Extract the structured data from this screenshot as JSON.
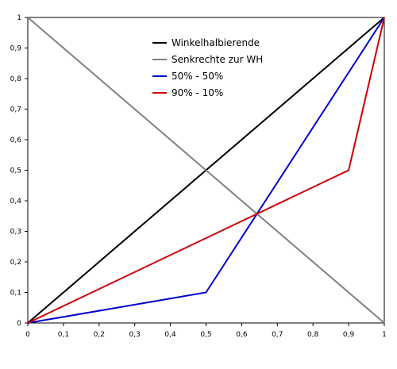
{
  "chart_data": {
    "type": "line",
    "title": "",
    "xlabel": "",
    "ylabel": "",
    "xlim": [
      0,
      1
    ],
    "ylim": [
      0,
      1
    ],
    "grid": false,
    "legend_position": "top-center",
    "x_ticks": [
      "0",
      "0,1",
      "0,2",
      "0,3",
      "0,4",
      "0,5",
      "0,6",
      "0,7",
      "0,8",
      "0,9",
      "1"
    ],
    "y_ticks": [
      "0",
      "0,1",
      "0,2",
      "0,3",
      "0,4",
      "0,5",
      "0,6",
      "0,7",
      "0,8",
      "0,9",
      "1"
    ],
    "series": [
      {
        "name": "Winkelhalbierende",
        "color": "#000000",
        "points": [
          [
            0,
            0
          ],
          [
            1,
            1
          ]
        ]
      },
      {
        "name": "Senkrechte zur WH",
        "color": "#808080",
        "points": [
          [
            0,
            1
          ],
          [
            1,
            0
          ]
        ]
      },
      {
        "name": "50% - 50%",
        "color": "#0000cc",
        "points": [
          [
            0,
            0
          ],
          [
            0.5,
            0.1
          ],
          [
            1,
            1
          ]
        ]
      },
      {
        "name": "90% - 10%",
        "color": "#cc0000",
        "points": [
          [
            0,
            0
          ],
          [
            0.9,
            0.5
          ],
          [
            1,
            1
          ]
        ]
      }
    ]
  }
}
